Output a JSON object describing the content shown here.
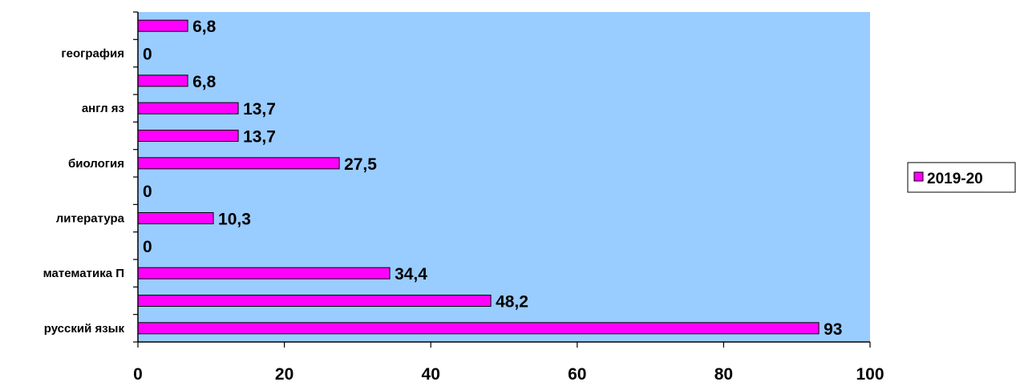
{
  "chart_data": {
    "type": "bar",
    "orientation": "horizontal",
    "categories": [
      "русский язык",
      "",
      "математика П",
      "",
      "литература",
      "",
      "биология",
      "",
      "англ яз",
      "",
      "география",
      ""
    ],
    "series": [
      {
        "name": "2019-20",
        "values": [
          93,
          48.2,
          34.4,
          0,
          10.3,
          0,
          27.5,
          13.7,
          13.7,
          6.8,
          0,
          6.8
        ]
      }
    ],
    "data_labels": [
      "93",
      "48,2",
      "34,4",
      "0",
      "10,3",
      "0",
      "27,5",
      "13,7",
      "13,7",
      "6,8",
      "0",
      "6,8"
    ],
    "x_ticks": [
      "0",
      "20",
      "40",
      "60",
      "80",
      "100"
    ],
    "xlim": [
      0,
      100
    ],
    "grid": false,
    "legend_position": "right",
    "colors": {
      "plot_background": "#99CCFF",
      "bar_fill": "#FF00FF",
      "bar_stroke": "#000000"
    }
  }
}
